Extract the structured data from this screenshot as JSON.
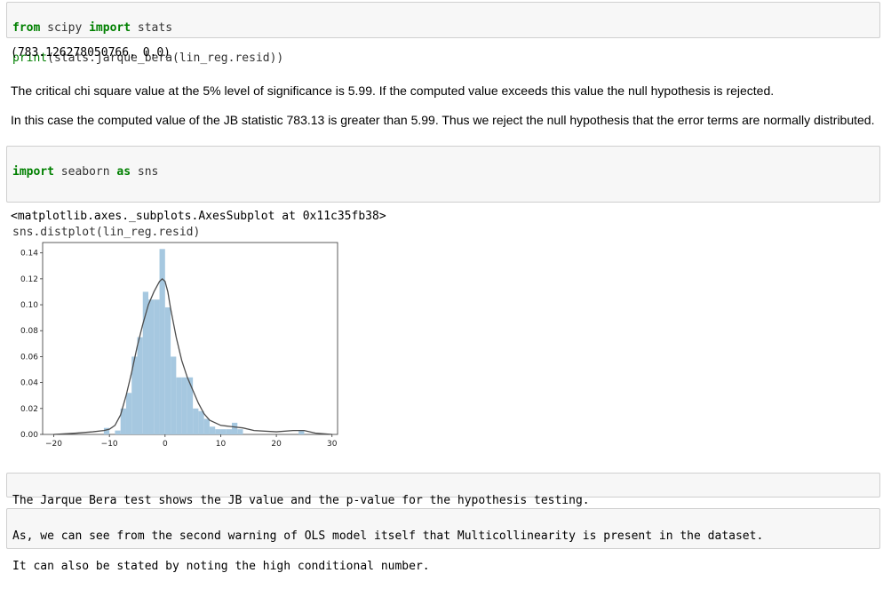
{
  "cells": {
    "jb_code": {
      "line1": {
        "kw1": "from",
        "mod": " scipy ",
        "kw2": "import",
        "rest": " stats"
      },
      "line2": {
        "fn": "print",
        "rest": "(stats.jarque_bera(lin_reg.resid))"
      }
    },
    "jb_output": "(783.126278050766, 0.0)",
    "md_1": "The critical chi square value at the 5% level of significance is 5.99. If the computed value exceeds this value the null hypothesis is rejected.",
    "md_2": "In this case the computed value of the JB statistic 783.13 is greater than 5.99. Thus we reject the null hypothesis that the error terms are normally distributed.",
    "sns_code": {
      "line1": {
        "kw1": "import",
        "mod": " seaborn ",
        "kw2": "as",
        "rest": " sns"
      },
      "line3": "sns.distplot(lin_reg.resid)"
    },
    "sns_output": "<matplotlib.axes._subplots.AxesSubplot at 0x11c35fb38>",
    "md_3": "The Jarque Bera test shows the JB value and the p-value for the hypothesis testing.",
    "md_4_line1": "As, we can see from the second warning of OLS model itself that Multicollinearity is present in the dataset.",
    "md_4_line2": "It can also be stated by noting the high conditional number."
  },
  "chart_data": {
    "type": "bar",
    "xlim": [
      -22,
      31
    ],
    "ylim": [
      0,
      0.148
    ],
    "xticks": [
      -20,
      -10,
      0,
      10,
      20,
      30
    ],
    "xtick_labels": [
      "−20",
      "−10",
      "0",
      "10",
      "20",
      "30"
    ],
    "yticks": [
      0.0,
      0.02,
      0.04,
      0.06,
      0.08,
      0.1,
      0.12,
      0.14
    ],
    "ytick_labels": [
      "0.00",
      "0.02",
      "0.04",
      "0.06",
      "0.08",
      "0.10",
      "0.12",
      "0.14"
    ],
    "bar_color": "#a6c8e0",
    "kde_color": "#4c4c4c",
    "bins": [
      {
        "x0": -11,
        "x1": -10,
        "y": 0.005
      },
      {
        "x0": -9,
        "x1": -8,
        "y": 0.003
      },
      {
        "x0": -8,
        "x1": -7,
        "y": 0.02
      },
      {
        "x0": -7,
        "x1": -6,
        "y": 0.032
      },
      {
        "x0": -6,
        "x1": -5,
        "y": 0.06
      },
      {
        "x0": -5,
        "x1": -4,
        "y": 0.075
      },
      {
        "x0": -4,
        "x1": -3,
        "y": 0.11
      },
      {
        "x0": -3,
        "x1": -2,
        "y": 0.104
      },
      {
        "x0": -2,
        "x1": -1,
        "y": 0.104
      },
      {
        "x0": -1,
        "x1": 0,
        "y": 0.143
      },
      {
        "x0": 0,
        "x1": 1,
        "y": 0.098
      },
      {
        "x0": 1,
        "x1": 2,
        "y": 0.06
      },
      {
        "x0": 2,
        "x1": 3,
        "y": 0.044
      },
      {
        "x0": 3,
        "x1": 4,
        "y": 0.044
      },
      {
        "x0": 4,
        "x1": 5,
        "y": 0.044
      },
      {
        "x0": 5,
        "x1": 6,
        "y": 0.02
      },
      {
        "x0": 6,
        "x1": 7,
        "y": 0.018
      },
      {
        "x0": 7,
        "x1": 8,
        "y": 0.012
      },
      {
        "x0": 8,
        "x1": 9,
        "y": 0.006
      },
      {
        "x0": 9,
        "x1": 10,
        "y": 0.004
      },
      {
        "x0": 10,
        "x1": 11,
        "y": 0.004
      },
      {
        "x0": 11,
        "x1": 12,
        "y": 0.004
      },
      {
        "x0": 12,
        "x1": 13,
        "y": 0.009
      },
      {
        "x0": 13,
        "x1": 14,
        "y": 0.004
      },
      {
        "x0": 24,
        "x1": 25,
        "y": 0.003
      }
    ],
    "kde": {
      "x": [
        -20,
        -16,
        -13,
        -11,
        -10,
        -9,
        -8,
        -7,
        -6,
        -5,
        -4,
        -3,
        -2,
        -1,
        -0.5,
        0,
        0.5,
        1,
        2,
        3,
        4,
        5,
        6,
        7,
        8,
        10,
        12,
        14,
        16,
        20,
        23,
        25,
        27,
        30
      ],
      "y": [
        0.0,
        0.001,
        0.002,
        0.003,
        0.004,
        0.007,
        0.015,
        0.03,
        0.048,
        0.068,
        0.085,
        0.1,
        0.11,
        0.118,
        0.12,
        0.118,
        0.11,
        0.097,
        0.075,
        0.057,
        0.044,
        0.034,
        0.024,
        0.016,
        0.011,
        0.007,
        0.006,
        0.005,
        0.003,
        0.002,
        0.003,
        0.003,
        0.001,
        0.0
      ]
    }
  }
}
